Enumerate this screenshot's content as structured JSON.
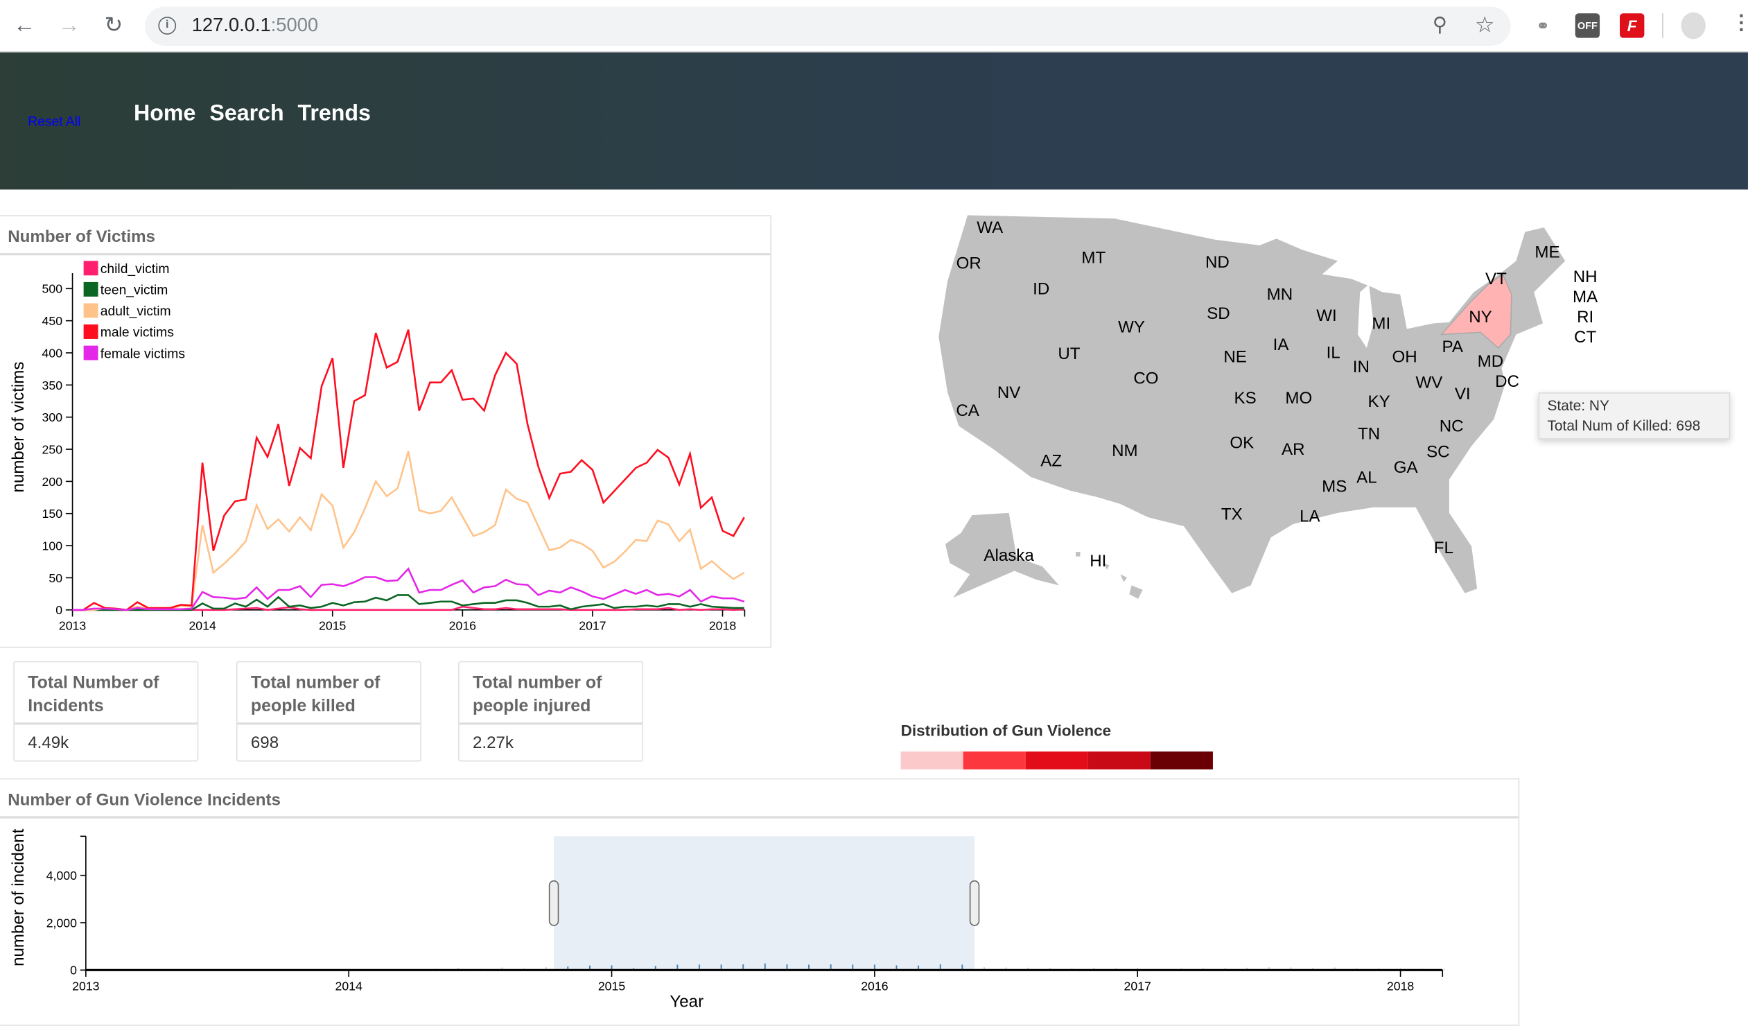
{
  "browser": {
    "url_host": "127.0.0.1",
    "url_port": ":5000",
    "ext_off_label": "OFF",
    "ext_f_label": "F"
  },
  "header": {
    "reset_label": "Reset All",
    "nav": [
      "Home",
      "Search",
      "Trends"
    ]
  },
  "victims_panel": {
    "title": "Number of Victims"
  },
  "stats": [
    {
      "label": "Total Number of Incidents",
      "value": "4.49k"
    },
    {
      "label": "Total number of people killed",
      "value": "698"
    },
    {
      "label": "Total number of people injured",
      "value": "2.27k"
    }
  ],
  "map": {
    "states": [
      "WA",
      "OR",
      "MT",
      "ID",
      "ND",
      "MN",
      "SD",
      "WY",
      "WI",
      "MI",
      "UT",
      "NE",
      "IA",
      "IL",
      "IN",
      "OH",
      "PA",
      "CO",
      "NV",
      "CA",
      "KS",
      "MO",
      "KY",
      "WV",
      "VI",
      "NC",
      "TN",
      "OK",
      "AR",
      "SC",
      "AZ",
      "NM",
      "GA",
      "AL",
      "MS",
      "TX",
      "LA",
      "FL",
      "Alaska",
      "HI",
      "ME",
      "VT",
      "NH",
      "MA",
      "RI",
      "CT",
      "NY",
      "MD",
      "DC"
    ],
    "highlighted": "NY",
    "highlight_color": "#ffb3b3",
    "base_color": "#c0c0c0",
    "tooltip": {
      "line1": "State: NY",
      "line2": "Total Num of Killed: 698"
    }
  },
  "distribution": {
    "title": "Distribution of Gun Violence",
    "colors": [
      "#fcc9cb",
      "#fd373e",
      "#e20d18",
      "#c70a16",
      "#6a0004"
    ]
  },
  "incidents_panel": {
    "title": "Number of Gun Violence Incidents"
  },
  "chart_data": [
    {
      "type": "line",
      "title": "Number of Victims",
      "xlabel": "",
      "ylabel": "number of victims",
      "x_start": "2013-01",
      "x_step": "month",
      "xlim": [
        2013,
        2018.17
      ],
      "ylim": [
        0,
        524
      ],
      "xticks": [
        "2013",
        "2014",
        "2015",
        "2016",
        "2017",
        "2018"
      ],
      "yticks": [
        0,
        50,
        100,
        150,
        200,
        250,
        300,
        350,
        400,
        450,
        500
      ],
      "legend": "top-left",
      "series": [
        {
          "name": "child_victim",
          "color": "#ff1f6e",
          "values": [
            0,
            0,
            0,
            0,
            0,
            0,
            0,
            0,
            0,
            0,
            0,
            0,
            0,
            0,
            0,
            1,
            2,
            3,
            0,
            2,
            4,
            1,
            0,
            0,
            0,
            0,
            0,
            0,
            0,
            0,
            0,
            0,
            0,
            0,
            0,
            0,
            5,
            3,
            1,
            1,
            3,
            1,
            1,
            1,
            1,
            1,
            0,
            0,
            0,
            0,
            0,
            0,
            1,
            1,
            1,
            3,
            0,
            1,
            0,
            1,
            1,
            0,
            1
          ]
        },
        {
          "name": "teen_victim",
          "color": "#0b6623",
          "values": [
            0,
            0,
            0,
            0,
            0,
            0,
            0,
            0,
            0,
            0,
            0,
            0,
            10,
            2,
            2,
            10,
            5,
            16,
            5,
            20,
            5,
            7,
            3,
            5,
            11,
            7,
            12,
            13,
            19,
            15,
            23,
            23,
            9,
            11,
            13,
            13,
            7,
            9,
            11,
            11,
            15,
            15,
            11,
            5,
            5,
            7,
            1,
            5,
            7,
            9,
            3,
            5,
            5,
            7,
            5,
            9,
            9,
            5,
            9,
            5,
            4,
            3,
            3
          ]
        },
        {
          "name": "adult_victim",
          "color": "#ffc38a",
          "values": [
            0,
            0,
            0,
            3,
            2,
            0,
            5,
            2,
            2,
            2,
            6,
            5,
            132,
            58,
            72,
            88,
            107,
            163,
            126,
            141,
            122,
            144,
            124,
            180,
            162,
            97,
            121,
            158,
            200,
            177,
            189,
            247,
            155,
            150,
            154,
            175,
            145,
            115,
            121,
            132,
            187,
            173,
            167,
            130,
            93,
            97,
            109,
            103,
            92,
            66,
            75,
            91,
            109,
            107,
            139,
            133,
            107,
            125,
            64,
            76,
            61,
            48,
            58
          ]
        },
        {
          "name": "male victims",
          "color": "#ff0d1f",
          "values": [
            0,
            0,
            11,
            3,
            2,
            0,
            12,
            3,
            3,
            3,
            8,
            7,
            229,
            92,
            147,
            169,
            172,
            268,
            238,
            289,
            193,
            252,
            236,
            348,
            392,
            221,
            325,
            334,
            431,
            377,
            386,
            436,
            310,
            354,
            354,
            373,
            327,
            329,
            310,
            365,
            400,
            383,
            289,
            223,
            174,
            212,
            215,
            233,
            218,
            167,
            185,
            203,
            221,
            229,
            249,
            237,
            195,
            243,
            159,
            175,
            123,
            115,
            144
          ]
        },
        {
          "name": "female victims",
          "color": "#e426e8",
          "values": [
            0,
            0,
            2,
            2,
            1,
            0,
            3,
            1,
            1,
            1,
            1,
            2,
            28,
            20,
            19,
            17,
            19,
            35,
            17,
            31,
            31,
            37,
            20,
            39,
            40,
            37,
            43,
            51,
            51,
            45,
            46,
            64,
            27,
            31,
            31,
            39,
            46,
            27,
            35,
            37,
            47,
            40,
            39,
            23,
            30,
            27,
            35,
            29,
            21,
            17,
            24,
            31,
            25,
            31,
            23,
            25,
            21,
            31,
            13,
            21,
            18,
            18,
            13
          ]
        }
      ]
    },
    {
      "type": "bar",
      "title": "Number of Gun Violence Incidents",
      "xlabel": "Year",
      "ylabel": "number of incident",
      "x_start": "2013-01",
      "x_step": "month",
      "xlim": [
        2013,
        2018.16
      ],
      "ylim": [
        0,
        5650
      ],
      "xticks": [
        "2013",
        "2014",
        "2015",
        "2016",
        "2017",
        "2018"
      ],
      "yticks": [
        {
          "v": 0,
          "label": "0"
        },
        {
          "v": 2000,
          "label": "2,000"
        },
        {
          "v": 4000,
          "label": "4,000"
        },
        {
          "v": 5650,
          "label": ""
        }
      ],
      "brush_range": [
        2014.78,
        2016.38
      ],
      "selected_color": "#4682b4",
      "unselected_color": "#cccccc",
      "values": [
        0,
        2,
        0,
        0,
        3,
        0,
        2,
        0,
        0,
        0,
        2,
        0,
        40,
        20,
        30,
        40,
        60,
        90,
        60,
        110,
        70,
        120,
        150,
        190,
        200,
        80,
        170,
        230,
        230,
        230,
        240,
        280,
        240,
        230,
        240,
        230,
        230,
        200,
        190,
        240,
        230,
        120,
        110,
        100,
        90,
        80,
        90,
        80,
        90,
        50,
        70,
        80,
        90,
        100,
        120,
        110,
        90,
        110,
        80,
        70,
        70,
        60,
        50
      ]
    }
  ]
}
